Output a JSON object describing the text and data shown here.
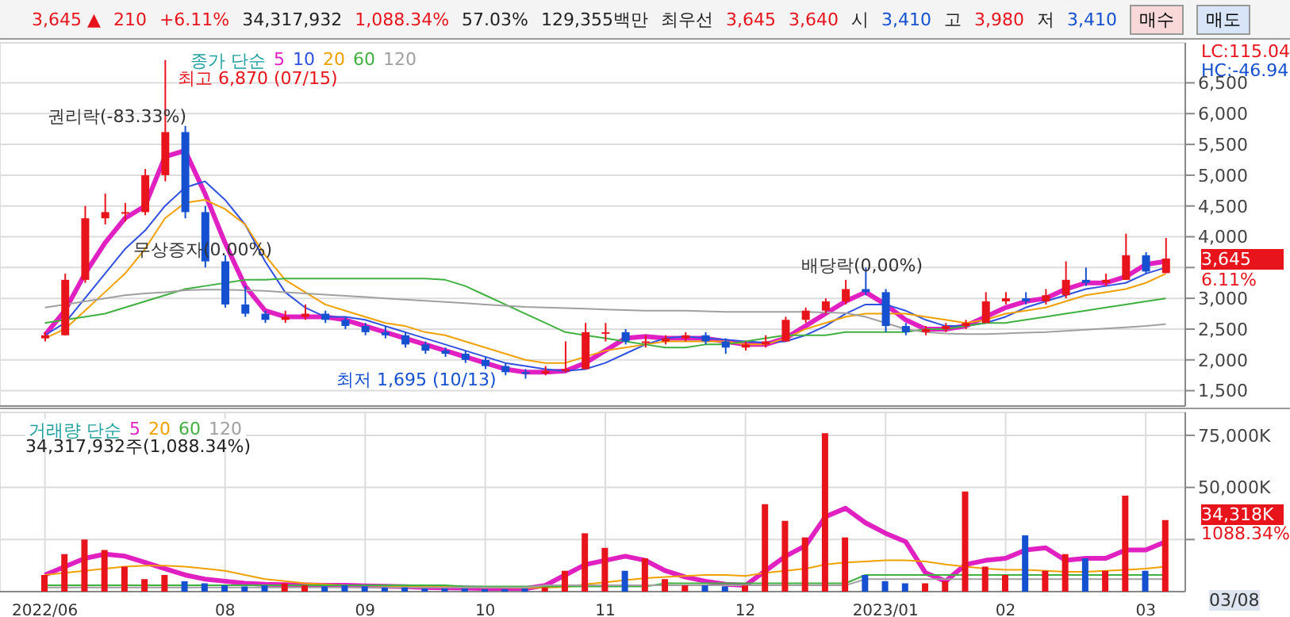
{
  "chart_data": [
    {
      "type": "candlestick",
      "legend": "top left",
      "legend_title": "종가 단순",
      "grid": true,
      "tick_labels": "y",
      "categories": [
        "2022/06",
        null,
        null,
        null,
        null,
        null,
        null,
        null,
        null,
        "08",
        null,
        null,
        null,
        null,
        null,
        null,
        "09",
        null,
        null,
        null,
        null,
        null,
        "10",
        null,
        null,
        null,
        null,
        null,
        "11",
        null,
        null,
        null,
        null,
        null,
        null,
        "12",
        null,
        null,
        null,
        null,
        null,
        null,
        "2023/01",
        null,
        null,
        null,
        null,
        null,
        "02",
        null,
        null,
        null,
        null,
        null,
        null,
        "03",
        null
      ],
      "ohlc": [
        [
          2350,
          2450,
          2300,
          2400
        ],
        [
          2400,
          3400,
          2400,
          3300
        ],
        [
          3300,
          4500,
          3250,
          4300
        ],
        [
          4300,
          4700,
          4200,
          4400
        ],
        [
          4400,
          4550,
          4250,
          4400
        ],
        [
          4400,
          5100,
          4350,
          5000
        ],
        [
          5000,
          6870,
          4900,
          5700
        ],
        [
          5700,
          5800,
          4300,
          4400
        ],
        [
          4400,
          4500,
          3500,
          3600
        ],
        [
          3600,
          3700,
          2850,
          2900
        ],
        [
          2900,
          3200,
          2700,
          2750
        ],
        [
          2750,
          2800,
          2600,
          2650
        ],
        [
          2650,
          2800,
          2600,
          2700
        ],
        [
          2700,
          2900,
          2650,
          2750
        ],
        [
          2750,
          2800,
          2600,
          2650
        ],
        [
          2650,
          2700,
          2500,
          2550
        ],
        [
          2550,
          2600,
          2400,
          2450
        ],
        [
          2450,
          2550,
          2350,
          2400
        ],
        [
          2400,
          2450,
          2200,
          2250
        ],
        [
          2250,
          2300,
          2100,
          2150
        ],
        [
          2150,
          2200,
          2050,
          2100
        ],
        [
          2100,
          2150,
          1950,
          2000
        ],
        [
          2000,
          2050,
          1850,
          1900
        ],
        [
          1900,
          1950,
          1750,
          1800
        ],
        [
          1800,
          1850,
          1695,
          1780
        ],
        [
          1780,
          1900,
          1750,
          1820
        ],
        [
          1820,
          2300,
          1800,
          1850
        ],
        [
          1850,
          2600,
          1850,
          2450
        ],
        [
          2450,
          2600,
          2300,
          2450
        ],
        [
          2450,
          2500,
          2250,
          2300
        ],
        [
          2300,
          2400,
          2200,
          2300
        ],
        [
          2300,
          2400,
          2250,
          2350
        ],
        [
          2350,
          2450,
          2300,
          2400
        ],
        [
          2400,
          2450,
          2250,
          2300
        ],
        [
          2300,
          2350,
          2100,
          2200
        ],
        [
          2200,
          2300,
          2150,
          2250
        ],
        [
          2250,
          2400,
          2200,
          2300
        ],
        [
          2300,
          2700,
          2300,
          2650
        ],
        [
          2650,
          2850,
          2600,
          2800
        ],
        [
          2800,
          3000,
          2750,
          2950
        ],
        [
          2950,
          3300,
          2900,
          3150
        ],
        [
          3150,
          3500,
          3050,
          3100
        ],
        [
          3100,
          3150,
          2450,
          2550
        ],
        [
          2550,
          2600,
          2400,
          2450
        ],
        [
          2450,
          2550,
          2400,
          2500
        ],
        [
          2500,
          2600,
          2450,
          2550
        ],
        [
          2550,
          2650,
          2500,
          2600
        ],
        [
          2600,
          3100,
          2600,
          2950
        ],
        [
          2950,
          3100,
          2900,
          3000
        ],
        [
          3000,
          3100,
          2900,
          2950
        ],
        [
          2950,
          3150,
          2900,
          3050
        ],
        [
          3050,
          3600,
          3000,
          3300
        ],
        [
          3300,
          3500,
          3200,
          3250
        ],
        [
          3250,
          3400,
          3200,
          3300
        ],
        [
          3300,
          4050,
          3300,
          3700
        ],
        [
          3700,
          3750,
          3400,
          3435
        ],
        [
          3410,
          3980,
          3410,
          3645
        ]
      ],
      "colors": [
        "#e8141c",
        "#e8141c",
        "#e8141c",
        "#e8141c",
        "#e8141c",
        "#e8141c",
        "#e8141c",
        "#1450d0",
        "#1450d0",
        "#1450d0",
        "#1450d0",
        "#1450d0",
        "#e8141c",
        "#e8141c",
        "#1450d0",
        "#1450d0",
        "#1450d0",
        "#1450d0",
        "#1450d0",
        "#1450d0",
        "#1450d0",
        "#1450d0",
        "#1450d0",
        "#1450d0",
        "#1450d0",
        "#e8141c",
        "#e8141c",
        "#e8141c",
        "#e8141c",
        "#1450d0",
        "#e8141c",
        "#e8141c",
        "#e8141c",
        "#1450d0",
        "#1450d0",
        "#e8141c",
        "#e8141c",
        "#e8141c",
        "#e8141c",
        "#e8141c",
        "#e8141c",
        "#1450d0",
        "#1450d0",
        "#1450d0",
        "#e8141c",
        "#e8141c",
        "#e8141c",
        "#e8141c",
        "#e8141c",
        "#1450d0",
        "#e8141c",
        "#e8141c",
        "#1450d0",
        "#e8141c",
        "#e8141c",
        "#1450d0",
        "#e8141c"
      ],
      "series": [
        {
          "name": "5",
          "type": "line",
          "color": "#e020c0",
          "values": [
            2400,
            2800,
            3400,
            3900,
            4300,
            4500,
            5300,
            5400,
            4700,
            3900,
            3200,
            2800,
            2700,
            2700,
            2700,
            2650,
            2550,
            2450,
            2350,
            2250,
            2150,
            2050,
            1950,
            1850,
            1800,
            1800,
            1820,
            1950,
            2150,
            2350,
            2380,
            2350,
            2350,
            2350,
            2300,
            2250,
            2250,
            2350,
            2550,
            2750,
            2950,
            3100,
            2900,
            2650,
            2500,
            2500,
            2550,
            2700,
            2850,
            2950,
            3000,
            3150,
            3250,
            3250,
            3350,
            3550,
            3600
          ]
        },
        {
          "name": "10",
          "type": "line",
          "color": "#3050e0",
          "values": [
            2400,
            2600,
            3000,
            3400,
            3800,
            4100,
            4500,
            4800,
            4900,
            4600,
            4200,
            3600,
            3100,
            2850,
            2700,
            2700,
            2650,
            2550,
            2450,
            2350,
            2250,
            2150,
            2050,
            1950,
            1900,
            1850,
            1820,
            1850,
            1950,
            2100,
            2250,
            2350,
            2380,
            2350,
            2330,
            2300,
            2280,
            2300,
            2400,
            2550,
            2750,
            2900,
            2900,
            2800,
            2650,
            2550,
            2550,
            2600,
            2700,
            2850,
            2950,
            3050,
            3150,
            3200,
            3250,
            3400,
            3500
          ]
        },
        {
          "name": "20",
          "type": "line",
          "color": "#f0a000",
          "values": [
            2350,
            2500,
            2800,
            3100,
            3400,
            3800,
            4300,
            4550,
            4600,
            4450,
            4200,
            3700,
            3300,
            3100,
            2900,
            2800,
            2700,
            2600,
            2550,
            2450,
            2400,
            2300,
            2200,
            2100,
            2000,
            1950,
            1950,
            2050,
            2150,
            2200,
            2250,
            2300,
            2300,
            2300,
            2300,
            2250,
            2250,
            2350,
            2500,
            2600,
            2700,
            2750,
            2750,
            2750,
            2700,
            2650,
            2600,
            2650,
            2750,
            2800,
            2850,
            2950,
            3050,
            3100,
            3150,
            3250,
            3400
          ]
        },
        {
          "name": "60",
          "type": "line",
          "color": "#40b040",
          "values": [
            2600,
            2650,
            2700,
            2750,
            2850,
            2950,
            3050,
            3150,
            3200,
            3250,
            3300,
            3300,
            3320,
            3320,
            3320,
            3320,
            3320,
            3320,
            3320,
            3320,
            3300,
            3200,
            3050,
            2900,
            2750,
            2600,
            2450,
            2400,
            2350,
            2300,
            2250,
            2200,
            2200,
            2250,
            2250,
            2300,
            2350,
            2400,
            2400,
            2400,
            2450,
            2450,
            2450,
            2450,
            2500,
            2500,
            2550,
            2600,
            2600,
            2650,
            2700,
            2750,
            2800,
            2850,
            2900,
            2950,
            3000
          ]
        },
        {
          "name": "120",
          "type": "line",
          "color": "#a0a0a0",
          "values": [
            2850,
            2900,
            2950,
            3000,
            3050,
            3080,
            3100,
            3130,
            3140,
            3140,
            3130,
            3120,
            3100,
            3080,
            3060,
            3040,
            3020,
            3000,
            2980,
            2960,
            2940,
            2920,
            2900,
            2880,
            2860,
            2850,
            2840,
            2830,
            2820,
            2810,
            2800,
            2800,
            2800,
            2790,
            2780,
            2780,
            2780,
            2780,
            2780,
            2770,
            2760,
            2700,
            2600,
            2500,
            2450,
            2430,
            2420,
            2420,
            2430,
            2440,
            2450,
            2470,
            2490,
            2510,
            2530,
            2550,
            2580
          ]
        }
      ],
      "ylim": [
        1250,
        7150
      ],
      "yticks": [
        {
          "value": 1500,
          "label": "1,500"
        },
        {
          "value": 2000,
          "label": "2,000"
        },
        {
          "value": 2500,
          "label": "2,500"
        },
        {
          "value": 3000,
          "label": "3,000"
        },
        {
          "value": 3500,
          "label": null
        },
        {
          "value": 4000,
          "label": "4,000"
        },
        {
          "value": 4500,
          "label": "4,500"
        },
        {
          "value": 5000,
          "label": "5,000"
        },
        {
          "value": 5500,
          "label": "5,500"
        },
        {
          "value": 6000,
          "label": "6,000"
        },
        {
          "value": 6500,
          "label": "6,500"
        }
      ],
      "annotations": [
        "3,645 ▲",
        "210",
        "+6.11%",
        "34,317,932",
        "1,088.34%",
        "57.03%",
        "129,355백만",
        "최우선",
        "3,645",
        "3,640",
        "시",
        "3,410",
        "고",
        "3,980",
        "저",
        "3,410",
        "매수",
        "매도",
        "최고 6,870 (07/15)",
        "권리락(-83.33%)",
        "무상증자(0.00%)",
        "최저 1,695 (10/13)",
        "배당락(0,00%)",
        "LC:115.04",
        "HC:-46.94",
        "3,645",
        "6.11%"
      ]
    },
    {
      "type": "bar",
      "legend": "top left",
      "legend_title": "거래량 단순",
      "grid": true,
      "categories": [
        "2022/06",
        null,
        null,
        null,
        null,
        null,
        null,
        null,
        null,
        "08",
        null,
        null,
        null,
        null,
        null,
        null,
        "09",
        null,
        null,
        null,
        null,
        null,
        "10",
        null,
        null,
        null,
        null,
        null,
        "11",
        null,
        null,
        null,
        null,
        null,
        null,
        "12",
        null,
        null,
        null,
        null,
        null,
        null,
        "2023/01",
        null,
        null,
        null,
        null,
        null,
        "02",
        null,
        null,
        null,
        null,
        null,
        null,
        "03",
        null
      ],
      "series": [
        {
          "type": "bar",
          "colors": [
            "#e8141c",
            "#e8141c",
            "#e8141c",
            "#e8141c",
            "#e8141c",
            "#e8141c",
            "#e8141c",
            "#1450d0",
            "#1450d0",
            "#1450d0",
            "#1450d0",
            "#1450d0",
            "#e8141c",
            "#e8141c",
            "#1450d0",
            "#1450d0",
            "#1450d0",
            "#1450d0",
            "#1450d0",
            "#1450d0",
            "#1450d0",
            "#1450d0",
            "#1450d0",
            "#1450d0",
            "#1450d0",
            "#e8141c",
            "#e8141c",
            "#e8141c",
            "#e8141c",
            "#1450d0",
            "#e8141c",
            "#e8141c",
            "#e8141c",
            "#1450d0",
            "#1450d0",
            "#e8141c",
            "#e8141c",
            "#e8141c",
            "#e8141c",
            "#e8141c",
            "#e8141c",
            "#1450d0",
            "#1450d0",
            "#1450d0",
            "#e8141c",
            "#e8141c",
            "#e8141c",
            "#e8141c",
            "#e8141c",
            "#1450d0",
            "#e8141c",
            "#e8141c",
            "#1450d0",
            "#e8141c",
            "#e8141c",
            "#1450d0",
            "#e8141c"
          ],
          "values": [
            8000,
            18000,
            25000,
            20000,
            12000,
            6000,
            8000,
            5000,
            4000,
            3000,
            2500,
            3000,
            4000,
            3000,
            2500,
            3000,
            2500,
            2000,
            2000,
            1500,
            1500,
            1500,
            1200,
            1200,
            1500,
            2000,
            10000,
            28000,
            21000,
            10000,
            16000,
            6000,
            3000,
            3000,
            2500,
            3000,
            42000,
            34000,
            26000,
            76000,
            26000,
            8000,
            5000,
            4000,
            4000,
            5000,
            48000,
            12000,
            8000,
            27000,
            10000,
            18000,
            16000,
            10000,
            46000,
            10000,
            34318
          ]
        },
        {
          "name": "5",
          "type": "line",
          "color": "#e020c0",
          "values": [
            8000,
            12000,
            16000,
            18000,
            17000,
            14000,
            11000,
            8000,
            6000,
            5000,
            4000,
            3500,
            3300,
            3200,
            3000,
            3000,
            2800,
            2600,
            2400,
            2000,
            1800,
            1700,
            1500,
            1400,
            1400,
            3000,
            8000,
            13000,
            15000,
            17000,
            15000,
            10000,
            7000,
            5000,
            3500,
            3000,
            10000,
            17000,
            22000,
            36000,
            40000,
            33000,
            28000,
            24000,
            9000,
            5000,
            13000,
            15000,
            16000,
            20000,
            21000,
            15000,
            16000,
            16000,
            20000,
            20000,
            24000
          ]
        },
        {
          "name": "20",
          "type": "line",
          "color": "#f0a000",
          "values": [
            8000,
            9000,
            10000,
            11000,
            12000,
            12500,
            12500,
            12000,
            11000,
            10000,
            8000,
            6000,
            5000,
            4000,
            3500,
            3000,
            3000,
            2800,
            2600,
            2500,
            2300,
            2200,
            2000,
            1900,
            1800,
            1900,
            2200,
            3500,
            4500,
            5500,
            6500,
            7000,
            7500,
            8000,
            8000,
            7500,
            9000,
            10000,
            11000,
            13000,
            14000,
            14500,
            15000,
            15000,
            14500,
            13000,
            12000,
            11000,
            10500,
            10500,
            10000,
            9500,
            9500,
            10000,
            10500,
            11000,
            12000
          ]
        },
        {
          "name": "60",
          "type": "line",
          "color": "#40b040",
          "values": [
            3000,
            3000,
            3000,
            3000,
            3000,
            3000,
            3000,
            3000,
            3000,
            3000,
            3000,
            3000,
            3000,
            3000,
            3000,
            3000,
            3000,
            3000,
            3000,
            3000,
            3000,
            2500,
            2500,
            2500,
            2500,
            2500,
            2500,
            2500,
            2500,
            2500,
            2500,
            4000,
            4000,
            4000,
            4000,
            4000,
            4000,
            4000,
            4000,
            4000,
            4000,
            8000,
            8000,
            8000,
            8000,
            8000,
            8000,
            8000,
            8000,
            8000,
            8000,
            8000,
            8000,
            8000,
            8000,
            8000,
            8000
          ]
        },
        {
          "name": "120",
          "type": "line",
          "color": "#a0a0a0",
          "values": [
            2000,
            2000,
            2000,
            2000,
            2000,
            2000,
            2000,
            2000,
            2000,
            2000,
            2000,
            2000,
            2000,
            2000,
            2000,
            2000,
            2000,
            2000,
            2000,
            2000,
            2000,
            2000,
            2000,
            2000,
            2000,
            3000,
            3000,
            3000,
            3000,
            3000,
            3000,
            3000,
            3000,
            3000,
            3000,
            3000,
            3000,
            3000,
            3000,
            3000,
            3000,
            6000,
            6000,
            6000,
            6000,
            6000,
            6000,
            6000,
            6000,
            6000,
            6000,
            6000,
            6000,
            6000,
            6000,
            6000,
            6000
          ]
        }
      ],
      "ylim": [
        0,
        86000
      ],
      "yticks": [
        {
          "value": 25000,
          "label": null
        },
        {
          "value": 50000,
          "label": "50,000K"
        },
        {
          "value": 75000,
          "label": "75,000K"
        }
      ],
      "annotations": [
        "34,317,932주(1,088.34%)",
        "34,318K",
        "1088.34%",
        "03/08"
      ]
    }
  ]
}
